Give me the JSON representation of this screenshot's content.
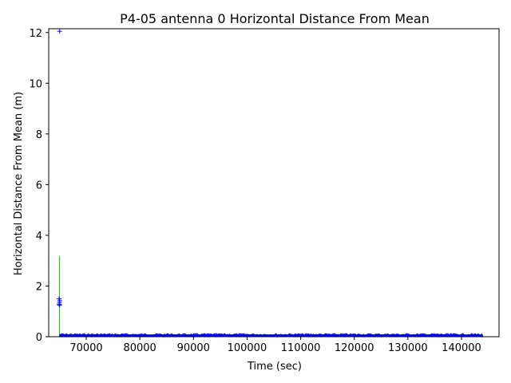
{
  "chart_data": {
    "type": "scatter",
    "title": "P4-05 antenna 0 Horizontal Distance From Mean",
    "xlabel": "Time (sec)",
    "ylabel": "Horizontal Distance From Mean (m)",
    "xlim": [
      63000,
      147000
    ],
    "ylim": [
      0,
      12.15
    ],
    "xticks": [
      70000,
      80000,
      90000,
      100000,
      110000,
      120000,
      130000,
      140000
    ],
    "yticks": [
      0,
      2,
      4,
      6,
      8,
      10,
      12
    ],
    "xtick_labels": [
      "70000",
      "80000",
      "90000",
      "100000",
      "110000",
      "120000",
      "130000",
      "140000"
    ],
    "ytick_labels": [
      "0",
      "2",
      "4",
      "6",
      "8",
      "10",
      "12"
    ],
    "grid": false,
    "legend": "none",
    "series": [
      {
        "color": "#0000ff",
        "marker": "+",
        "points": [
          {
            "x": 65050,
            "y": 12.05
          },
          {
            "x": 64950,
            "y": 1.5
          },
          {
            "x": 65050,
            "y": 1.42
          },
          {
            "x": 65000,
            "y": 1.35
          },
          {
            "x": 64950,
            "y": 1.28
          },
          {
            "x": 65050,
            "y": 1.25
          }
        ],
        "band": {
          "x_start": 65000,
          "x_end": 144000,
          "y_min": 0.0,
          "y_max": 0.12
        }
      },
      {
        "color": "#00cc00",
        "errorbar": {
          "x": 65000,
          "y_low": 0.0,
          "y_high": 3.18
        }
      }
    ],
    "colors": {
      "series_main": "#0000ff",
      "errorbar": "#00cc00",
      "axes": "#000000"
    }
  }
}
